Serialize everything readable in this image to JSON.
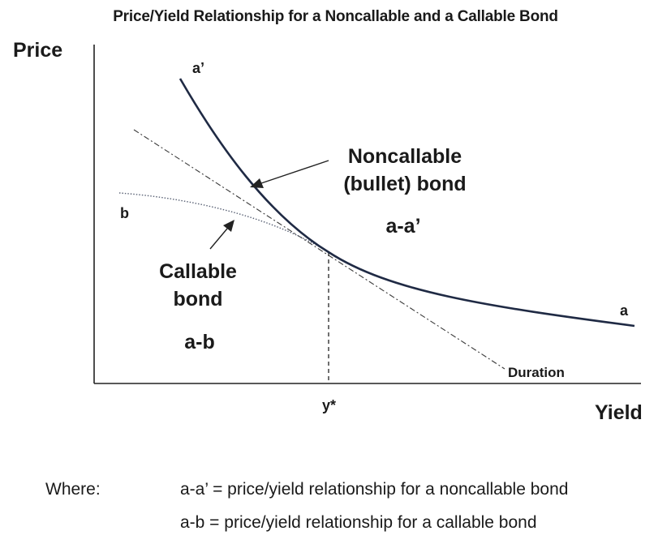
{
  "title": "Price/Yield Relationship for a Noncallable and a Callable Bond",
  "axes": {
    "y_label": "Price",
    "x_label": "Yield",
    "x_marker": "y*"
  },
  "curves": {
    "noncallable": {
      "label_line1": "Noncallable",
      "label_line2": "(bullet) bond",
      "range_label": "a-a’",
      "start_point": "a’",
      "end_point": "a"
    },
    "callable": {
      "label_line1": "Callable",
      "label_line2": "bond",
      "range_label": "a-b",
      "start_point": "b"
    },
    "duration": {
      "label": "Duration"
    }
  },
  "legend": {
    "prefix": "Where:",
    "line1": "a-a’ = price/yield relationship for a noncallable bond",
    "line2": "a-b = price/yield relationship for a callable bond"
  },
  "colors": {
    "noncallable_curve": "#1f2a44",
    "callable_curve": "#5a6275",
    "duration_line": "#3a3a3a",
    "axes": "#222222"
  }
}
